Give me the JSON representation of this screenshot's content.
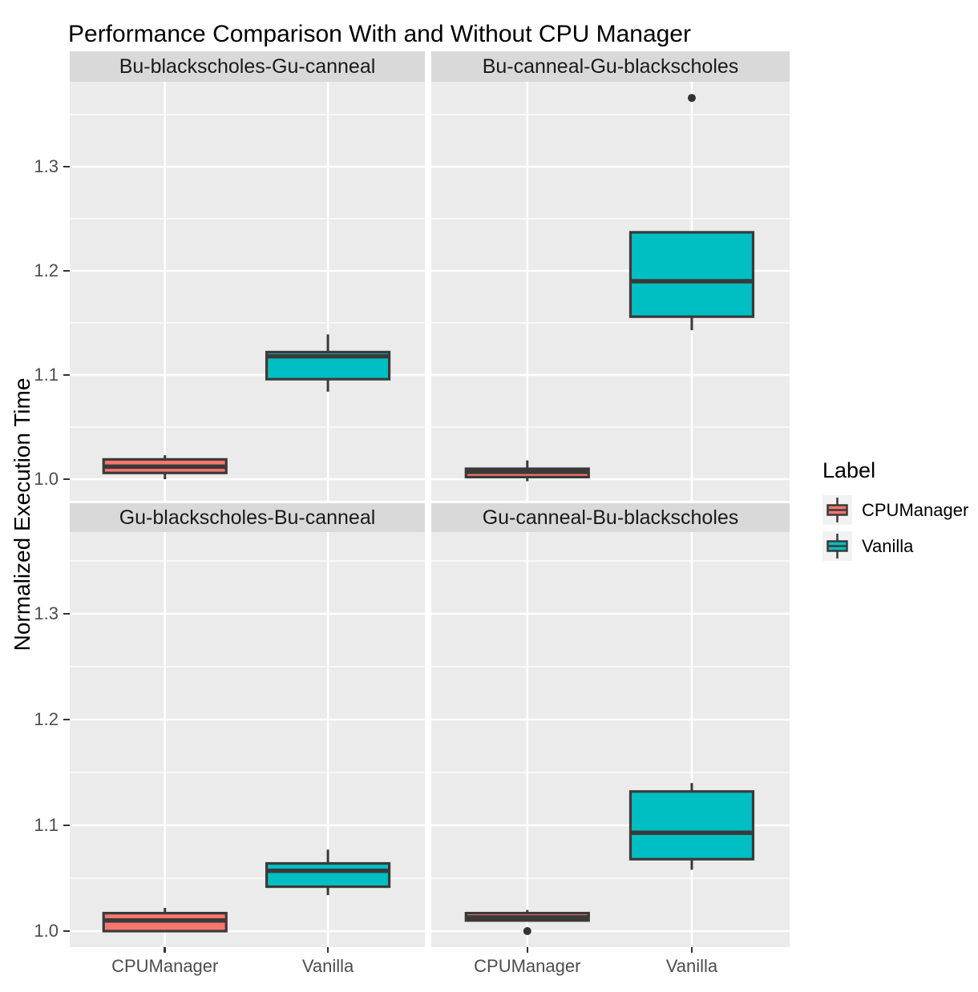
{
  "title": "Performance Comparison With and Without CPU Manager",
  "y_axis_label": "Normalized Execution Time",
  "legend": {
    "title": "Label",
    "items": [
      {
        "label": "CPUManager",
        "color": "#F8766D"
      },
      {
        "label": "Vanilla",
        "color": "#00BFC4"
      }
    ]
  },
  "colors": {
    "panel_bg": "#EBEBEB",
    "strip_bg": "#D9D9D9",
    "strip_text": "#1A1A1A",
    "grid": "#FFFFFF",
    "box_stroke": "#3A3A3A",
    "axis_text": "#4D4D4D",
    "tick_mark": "#333333",
    "outlier": "#333333",
    "legend_key_bg": "#F2F2F2",
    "title_text": "#000000"
  },
  "chart_data": {
    "type": "boxplot",
    "title": "Performance Comparison With and Without CPU Manager",
    "ylabel": "Normalized Execution Time",
    "categories": [
      "CPUManager",
      "Vanilla"
    ],
    "yticks": [
      1.0,
      1.1,
      1.2,
      1.3
    ],
    "minor_yticks": [
      1.05,
      1.15,
      1.25,
      1.35
    ],
    "ylim": [
      0.98,
      1.38
    ],
    "grid": "white major and minor horizontal lines on gray panel, white vertical lines at categories",
    "legend_position": "right",
    "panels": [
      {
        "title": "Bu-blackscholes-Gu-canneal",
        "row": 0,
        "col": 0,
        "boxes": [
          {
            "label": "CPUManager",
            "min": 1.0,
            "q1": 1.006,
            "median": 1.012,
            "q3": 1.019,
            "max": 1.023,
            "outliers": []
          },
          {
            "label": "Vanilla",
            "min": 1.084,
            "q1": 1.096,
            "median": 1.118,
            "q3": 1.122,
            "max": 1.139,
            "outliers": []
          }
        ]
      },
      {
        "title": "Bu-canneal-Gu-blackscholes",
        "row": 0,
        "col": 1,
        "boxes": [
          {
            "label": "CPUManager",
            "min": 0.998,
            "q1": 1.002,
            "median": 1.007,
            "q3": 1.01,
            "max": 1.018,
            "outliers": []
          },
          {
            "label": "Vanilla",
            "min": 1.143,
            "q1": 1.156,
            "median": 1.19,
            "q3": 1.237,
            "max": 1.237,
            "outliers": [
              1.366
            ]
          }
        ]
      },
      {
        "title": "Gu-blackscholes-Bu-canneal",
        "row": 1,
        "col": 0,
        "boxes": [
          {
            "label": "CPUManager",
            "min": 1.0,
            "q1": 1.0,
            "median": 1.01,
            "q3": 1.017,
            "max": 1.022,
            "outliers": []
          },
          {
            "label": "Vanilla",
            "min": 1.034,
            "q1": 1.042,
            "median": 1.057,
            "q3": 1.064,
            "max": 1.077,
            "outliers": []
          }
        ]
      },
      {
        "title": "Gu-canneal-Bu-blackscholes",
        "row": 1,
        "col": 1,
        "boxes": [
          {
            "label": "CPUManager",
            "min": 1.01,
            "q1": 1.01,
            "median": 1.013,
            "q3": 1.017,
            "max": 1.02,
            "outliers": [
              1.0
            ]
          },
          {
            "label": "Vanilla",
            "min": 1.058,
            "q1": 1.068,
            "median": 1.093,
            "q3": 1.132,
            "max": 1.14,
            "outliers": []
          }
        ]
      }
    ]
  }
}
